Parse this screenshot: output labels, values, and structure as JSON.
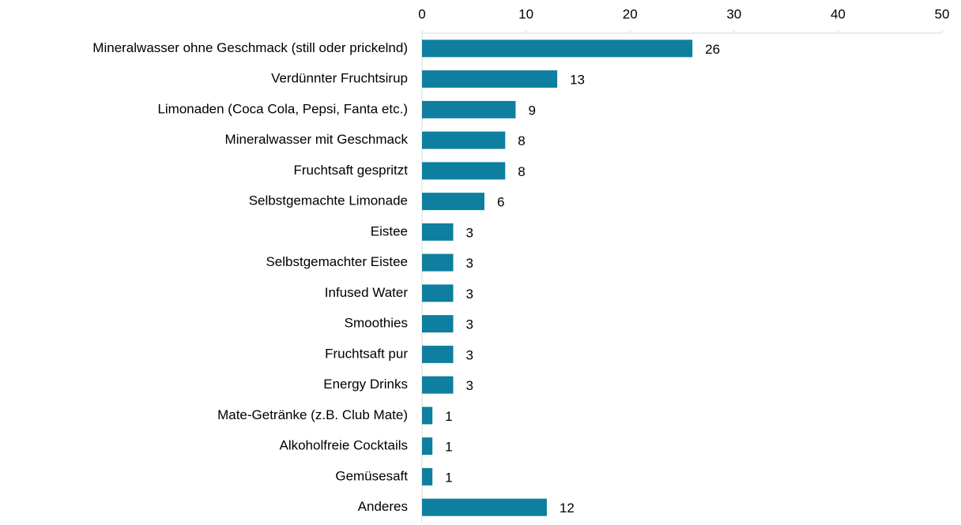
{
  "chart_data": {
    "type": "bar",
    "orientation": "horizontal",
    "categories": [
      "Mineralwasser ohne Geschmack (still oder prickelnd)",
      "Verdünnter Fruchtsirup ",
      "Limonaden (Coca Cola, Pepsi, Fanta etc.)",
      "Mineralwasser mit Geschmack",
      "Fruchtsaft gespritzt ",
      "Selbstgemachte Limonade ",
      "Eistee",
      "Selbstgemachter Eistee",
      "Infused Water",
      "Smoothies",
      "Fruchtsaft pur ",
      "Energy Drinks",
      "Mate-Getränke (z.B. Club Mate)",
      "Alkoholfreie Cocktails",
      "Gemüsesaft",
      "Anderes"
    ],
    "values": [
      26,
      13,
      9,
      8,
      8,
      6,
      3,
      3,
      3,
      3,
      3,
      3,
      1,
      1,
      1,
      12
    ],
    "color": "#0e7f9e",
    "xlim": [
      0,
      50
    ],
    "xticks": [
      0,
      10,
      20,
      30,
      40,
      50
    ],
    "grid": false
  }
}
